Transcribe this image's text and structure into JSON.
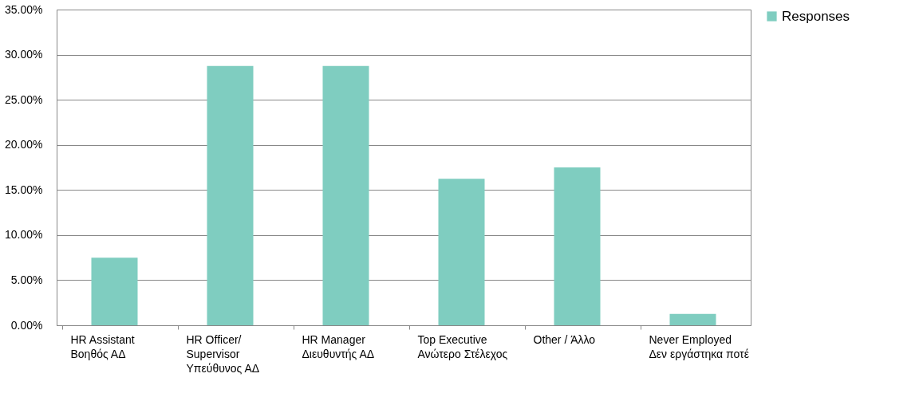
{
  "chart_data": {
    "type": "bar",
    "categories": [
      "HR Assistant\nΒοηθός ΑΔ",
      "HR Officer/\nSupervisor\nΥπεύθυνος ΑΔ",
      "HR Manager\nΔιευθυντής ΑΔ",
      "Top Executive\nΑνώτερο Στέλεχος",
      "Other / Άλλο",
      "Never Employed\nΔεν εργάστηκα ποτέ"
    ],
    "series": [
      {
        "name": "Responses",
        "color": "#7fcdc0",
        "values": [
          7.5,
          28.75,
          28.75,
          16.25,
          17.5,
          1.25
        ]
      }
    ],
    "ylim": [
      0,
      35
    ],
    "yticks": [
      {
        "value": 0,
        "label": "0.00%"
      },
      {
        "value": 5,
        "label": "5.00%"
      },
      {
        "value": 10,
        "label": "10.00%"
      },
      {
        "value": 15,
        "label": "15.00%"
      },
      {
        "value": 20,
        "label": "20.00%"
      },
      {
        "value": 25,
        "label": "25.00%"
      },
      {
        "value": 30,
        "label": "30.00%"
      },
      {
        "value": 35,
        "label": "35.00%"
      }
    ],
    "grid": "y",
    "legend": "right"
  }
}
